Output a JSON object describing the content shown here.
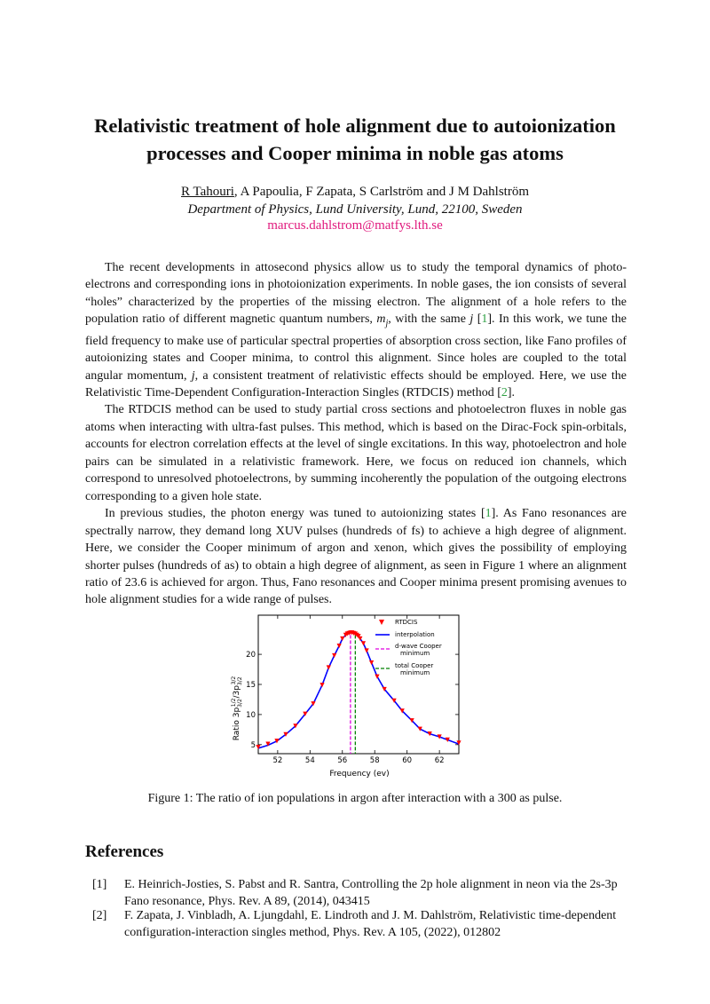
{
  "paper": {
    "title_line1": "Relativistic treatment of hole alignment due to autoionization",
    "title_line2": "processes and Cooper minima in noble gas atoms",
    "first_author": "R Tahouri",
    "other_authors": ", A Papoulia, F Zapata, S Carlström and J M Dahlström",
    "affiliation": "Department of Physics, Lund University, Lund, 22100, Sweden",
    "email": "marcus.dahlstrom@matfys.lth.se"
  },
  "body": {
    "p1a": "The recent developments in attosecond physics allow us to study the temporal dynamics of photo-electrons and corresponding ions in photoionization experiments. In noble gases, the ion consists of several “holes” characterized by the properties of the missing electron. The alignment of a hole refers to the population ratio of different magnetic quantum numbers, ",
    "p1_mj": "m",
    "p1_mj_sub": "j",
    "p1b": ", with the same ",
    "p1_j": "j",
    "p1c": " [",
    "p1_cite1": "1",
    "p1d": "]. In this work, we tune the field frequency to make use of particular spectral properties of absorption cross section, like Fano profiles of autoionizing states and Cooper minima, to control this alignment. Since holes are coupled to the total angular momentum, ",
    "p1_j2": "j",
    "p1e": ", a consistent treatment of relativistic effects should be employed. Here, we use the Relativistic Time-Dependent Configuration-Interaction Singles (RTDCIS) method [",
    "p1_cite2": "2",
    "p1f": "].",
    "p2": "The RTDCIS method can be used to study partial cross sections and photoelectron fluxes in noble gas atoms when interacting with ultra-fast pulses. This method, which is based on the Dirac-Fock spin-orbitals, accounts for electron correlation effects at the level of single excitations. In this way, photoelectron and hole pairs can be simulated in a relativistic framework. Here, we focus on reduced ion channels, which correspond to unresolved photoelectrons, by summing incoherently the population of the outgoing electrons corresponding to a given hole state.",
    "p3a": "In previous studies, the photon energy was tuned to autoionizing states [",
    "p3_cite": "1",
    "p3b": "]. As Fano resonances are spectrally narrow, they demand long XUV pulses (hundreds of fs) to achieve a high degree of alignment. Here, we consider the Cooper minimum of argon and xenon, which gives the possibility of employing shorter pulses (hundreds of as) to obtain a high degree of alignment, as seen in Figure 1 where an alignment ratio of 23.6 is achieved for argon. Thus, Fano resonances and Cooper minima present promising avenues to hole alignment studies for a wide range of pulses."
  },
  "figure": {
    "caption": "Figure 1: The ratio of ion populations in argon after interaction with a 300 as pulse."
  },
  "references": {
    "heading": "References",
    "items": [
      {
        "num": "[1]",
        "text": "E. Heinrich-Josties, S. Pabst and R. Santra, Controlling the 2p hole alignment in neon via the 2s-3p Fano resonance, Phys. Rev. A 89, (2014), 043415"
      },
      {
        "num": "[2]",
        "text": "F. Zapata, J. Vinbladh, A. Ljungdahl, E. Lindroth and J. M. Dahlström, Relativistic time-dependent configuration-interaction singles method, Phys. Rev. A 105, (2022), 012802"
      }
    ]
  },
  "chart_data": {
    "type": "line",
    "xlabel": "Frequency (ev)",
    "ylabel": "Ratio 3p1/2 3/2 / 3p3/2 3/2",
    "ylabel_main": "Ratio 3p",
    "ylabel_sub1": "3/2",
    "ylabel_sup1": "1/2",
    "ylabel_slash": "/3p",
    "ylabel_sub2": "3/2",
    "ylabel_sup2": "3/2",
    "xlim": [
      50.8,
      63.2
    ],
    "ylim": [
      3.5,
      26.5
    ],
    "xticks": [
      52,
      54,
      56,
      58,
      60,
      62
    ],
    "yticks": [
      5,
      10,
      15,
      20
    ],
    "legend_placement": "top-right",
    "grid": false,
    "colors": {
      "rtdcis": "#ff0000",
      "interpolation": "#0000ff",
      "d_wave": "#e000e0",
      "total": "#008000"
    },
    "series": [
      {
        "name": "RTDCIS",
        "marker": "triangle-down",
        "x": [
          50.8,
          51.4,
          51.95,
          52.5,
          53.1,
          53.7,
          54.2,
          54.75,
          55.15,
          55.5,
          55.8,
          56.0,
          56.2,
          56.3,
          56.4,
          56.5,
          56.6,
          56.7,
          56.8,
          56.9,
          57.0,
          57.1,
          57.3,
          57.5,
          57.8,
          58.15,
          58.6,
          59.2,
          59.7,
          60.3,
          60.8,
          61.4,
          62.0,
          62.5,
          63.2
        ],
        "y": [
          4.6,
          5.1,
          5.6,
          6.7,
          8.1,
          10.1,
          11.8,
          14.9,
          17.8,
          19.8,
          21.4,
          22.6,
          23.2,
          23.4,
          23.5,
          23.6,
          23.6,
          23.5,
          23.4,
          23.2,
          23.0,
          22.6,
          21.8,
          20.6,
          18.6,
          16.3,
          14.2,
          12.3,
          10.6,
          9.0,
          7.6,
          6.8,
          6.3,
          5.8,
          5.3
        ]
      },
      {
        "name": "interpolation",
        "x": [
          50.8,
          51.4,
          51.95,
          52.5,
          53.1,
          53.7,
          54.2,
          54.75,
          55.15,
          55.5,
          55.8,
          56.0,
          56.2,
          56.3,
          56.4,
          56.5,
          56.6,
          56.7,
          56.8,
          56.9,
          57.0,
          57.1,
          57.3,
          57.5,
          57.8,
          58.15,
          58.6,
          59.2,
          59.7,
          60.3,
          60.8,
          61.4,
          62.0,
          62.5,
          63.2
        ],
        "y": [
          4.4,
          4.9,
          5.6,
          6.7,
          8.1,
          10.1,
          11.8,
          14.9,
          17.8,
          19.8,
          21.4,
          22.6,
          23.2,
          23.4,
          23.5,
          23.6,
          23.6,
          23.5,
          23.4,
          23.2,
          23.0,
          22.6,
          21.8,
          20.6,
          18.6,
          16.3,
          14.2,
          12.3,
          10.6,
          9.0,
          7.6,
          6.8,
          6.3,
          5.8,
          5.1
        ]
      },
      {
        "name": "d-wave Cooper minimum",
        "label_line1": "d-wave Cooper",
        "label_line2": "minimum",
        "style": "dashed",
        "x": 56.5
      },
      {
        "name": "total Cooper minimum",
        "label_line1": "total Cooper",
        "label_line2": "minimum",
        "style": "dashed",
        "x": 56.8
      }
    ]
  }
}
